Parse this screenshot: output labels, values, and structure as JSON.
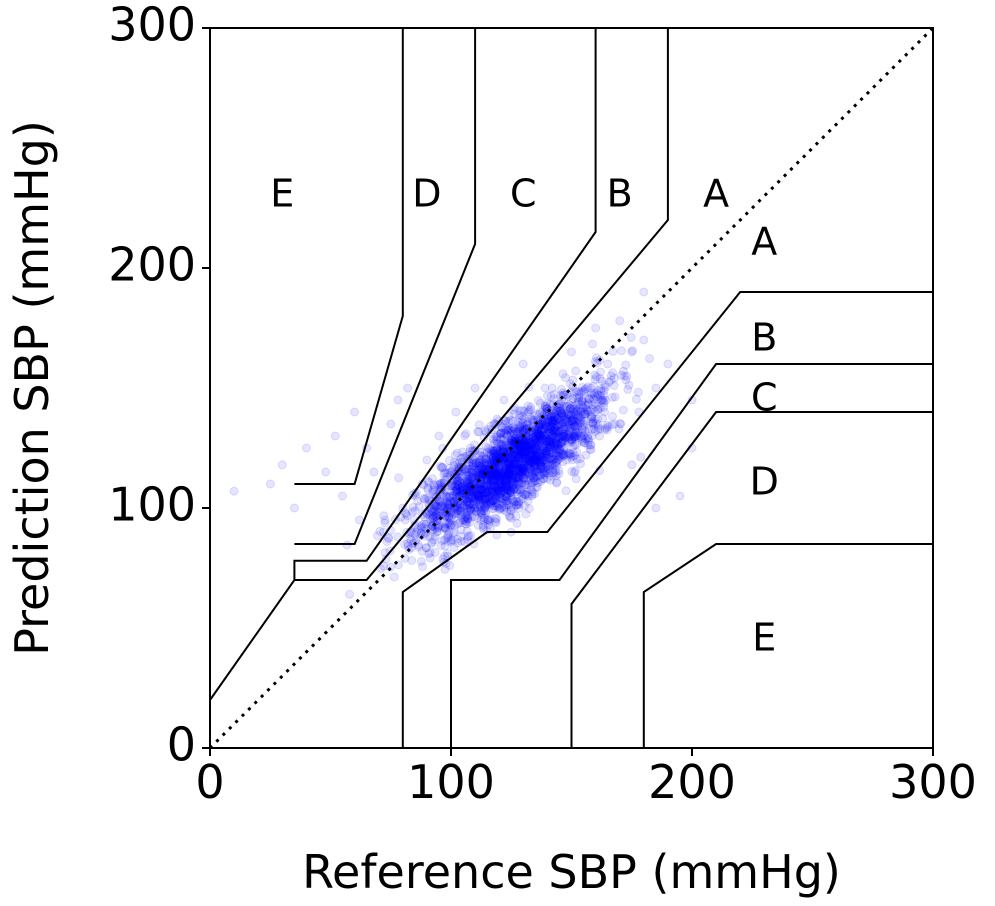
{
  "chart_data": {
    "type": "scatter",
    "title": "",
    "xlabel": "Reference SBP (mmHg)",
    "ylabel": "Prediction SBP (mmHg)",
    "xlim": [
      0,
      300
    ],
    "ylim": [
      0,
      300
    ],
    "xticks": [
      0,
      100,
      200,
      300
    ],
    "yticks": [
      0,
      100,
      200,
      300
    ],
    "xtick_labels": [
      "0",
      "100",
      "200",
      "300"
    ],
    "ytick_labels": [
      "0",
      "100",
      "200",
      "300"
    ],
    "grid": false,
    "point_color": "#0000ff",
    "point_alpha": 0.1,
    "identity_line": {
      "style": "dotted",
      "from": [
        0,
        0
      ],
      "to": [
        300,
        300
      ],
      "color": "#000000"
    },
    "scatter_summary": {
      "x_range": [
        10,
        200
      ],
      "y_range": [
        60,
        190
      ],
      "center": [
        125,
        118
      ],
      "points_sampled": [
        [
          10,
          107
        ],
        [
          25,
          110
        ],
        [
          30,
          118
        ],
        [
          35,
          100
        ],
        [
          40,
          125
        ],
        [
          48,
          115
        ],
        [
          52,
          130
        ],
        [
          55,
          105
        ],
        [
          60,
          140
        ],
        [
          62,
          95
        ],
        [
          65,
          125
        ],
        [
          68,
          115
        ],
        [
          72,
          90
        ],
        [
          75,
          135
        ],
        [
          78,
          145
        ],
        [
          80,
          100
        ],
        [
          82,
          150
        ],
        [
          85,
          92
        ],
        [
          88,
          110
        ],
        [
          90,
          120
        ],
        [
          92,
          98
        ],
        [
          95,
          130
        ],
        [
          98,
          105
        ],
        [
          100,
          115
        ],
        [
          102,
          140
        ],
        [
          105,
          95
        ],
        [
          108,
          125
        ],
        [
          110,
          150
        ],
        [
          112,
          105
        ],
        [
          115,
          118
        ],
        [
          118,
          135
        ],
        [
          120,
          100
        ],
        [
          122,
          145
        ],
        [
          125,
          120
        ],
        [
          128,
          110
        ],
        [
          130,
          160
        ],
        [
          132,
          130
        ],
        [
          135,
          115
        ],
        [
          138,
          140
        ],
        [
          140,
          125
        ],
        [
          142,
          150
        ],
        [
          145,
          135
        ],
        [
          148,
          120
        ],
        [
          150,
          165
        ],
        [
          152,
          140
        ],
        [
          155,
          130
        ],
        [
          158,
          150
        ],
        [
          160,
          175
        ],
        [
          162,
          145
        ],
        [
          165,
          160
        ],
        [
          168,
          135
        ],
        [
          170,
          178
        ],
        [
          172,
          155
        ],
        [
          175,
          165
        ],
        [
          178,
          140
        ],
        [
          180,
          170
        ],
        [
          185,
          150
        ],
        [
          190,
          160
        ],
        [
          195,
          105
        ],
        [
          200,
          125
        ],
        [
          180,
          190
        ],
        [
          200,
          145
        ],
        [
          175,
          118
        ],
        [
          185,
          100
        ]
      ]
    },
    "zones": {
      "boundaries": [
        {
          "name": "A-upper",
          "points": [
            [
              0,
              20
            ],
            [
              35,
              70
            ],
            [
              65,
              70
            ],
            [
              190,
              220
            ],
            [
              190,
              300
            ]
          ]
        },
        {
          "name": "B-upper",
          "points": [
            [
              35,
              70
            ],
            [
              35,
              78
            ],
            [
              65,
              78
            ],
            [
              160,
              215
            ],
            [
              160,
              300
            ]
          ]
        },
        {
          "name": "C-upper",
          "points": [
            [
              35,
              85
            ],
            [
              60,
              85
            ],
            [
              110,
              210
            ],
            [
              110,
              300
            ]
          ]
        },
        {
          "name": "D-upper",
          "points": [
            [
              35,
              110
            ],
            [
              60,
              110
            ],
            [
              80,
              180
            ],
            [
              80,
              300
            ]
          ]
        },
        {
          "name": "A-lower",
          "points": [
            [
              80,
              0
            ],
            [
              80,
              65
            ],
            [
              115,
              90
            ],
            [
              140,
              90
            ],
            [
              220,
              190
            ],
            [
              300,
              190
            ]
          ]
        },
        {
          "name": "B-lower",
          "points": [
            [
              100,
              0
            ],
            [
              100,
              70
            ],
            [
              145,
              70
            ],
            [
              210,
              160
            ],
            [
              300,
              160
            ]
          ]
        },
        {
          "name": "C-lower",
          "points": [
            [
              150,
              0
            ],
            [
              150,
              60
            ],
            [
              210,
              140
            ],
            [
              300,
              140
            ]
          ]
        },
        {
          "name": "D-lower",
          "points": [
            [
              180,
              0
            ],
            [
              180,
              65
            ],
            [
              210,
              85
            ],
            [
              300,
              85
            ]
          ]
        }
      ],
      "labels": [
        {
          "text": "E",
          "x": 30,
          "y": 230
        },
        {
          "text": "D",
          "x": 90,
          "y": 230
        },
        {
          "text": "C",
          "x": 130,
          "y": 230
        },
        {
          "text": "B",
          "x": 170,
          "y": 230
        },
        {
          "text": "A",
          "x": 210,
          "y": 230
        },
        {
          "text": "A",
          "x": 230,
          "y": 210
        },
        {
          "text": "B",
          "x": 230,
          "y": 170
        },
        {
          "text": "C",
          "x": 230,
          "y": 145
        },
        {
          "text": "D",
          "x": 230,
          "y": 110
        },
        {
          "text": "E",
          "x": 230,
          "y": 45
        }
      ]
    }
  }
}
